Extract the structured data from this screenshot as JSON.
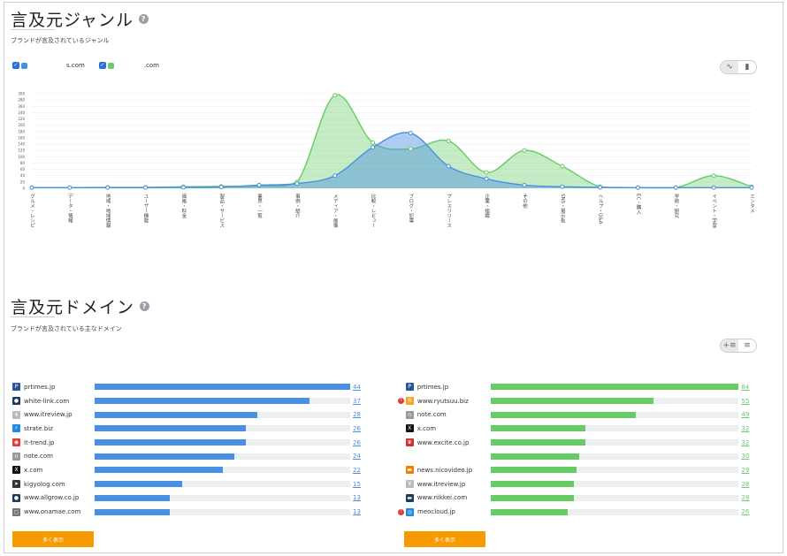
{
  "genre": {
    "title": "言及元ジャンル",
    "subtitle": "ブランドが言及されているジャンル",
    "legend": [
      {
        "label": "s.com",
        "color": "#4a90e2"
      },
      {
        "label": ".com",
        "color": "#66cc66"
      }
    ]
  },
  "domain_section": {
    "title": "言及元ドメイン",
    "subtitle": "ブランドが言及されている主なドメイン",
    "more_label": "多く表示"
  },
  "chart_data": {
    "type": "area",
    "categories": [
      "グルメ・レシピ",
      "データ・情報",
      "地域・地域情報",
      "ユーザー機能",
      "価格・料金",
      "製品・サービス",
      "業界・一覧",
      "事例・紹介",
      "メディア・画像",
      "比較・レビュー",
      "ブログ・記事",
      "プレスリリース",
      "企業・組織",
      "その他",
      "SNS・掲示板",
      "ヘルプ・Q&A",
      "EC・購入",
      "学術・研究",
      "イベント・学習",
      "エンタメ"
    ],
    "yticks": [
      0,
      20,
      40,
      60,
      80,
      100,
      120,
      140,
      160,
      180,
      200,
      220,
      240,
      260,
      280,
      300
    ],
    "ylim": [
      0,
      300
    ],
    "series": [
      {
        "name": "s.com",
        "color": "#4a90e2",
        "values": [
          2,
          2,
          2,
          2,
          3,
          4,
          10,
          15,
          40,
          130,
          175,
          70,
          30,
          10,
          5,
          3,
          2,
          2,
          2,
          2
        ]
      },
      {
        "name": ".com",
        "color": "#66cc66",
        "values": [
          2,
          2,
          3,
          3,
          5,
          6,
          8,
          20,
          295,
          145,
          125,
          150,
          50,
          120,
          70,
          5,
          2,
          2,
          40,
          5
        ]
      }
    ]
  },
  "left_domains": {
    "color": "#4a90e2",
    "max": 44,
    "rows": [
      {
        "name": "prtimes.jp",
        "value": 44,
        "icon": "prtimes-icon",
        "icolor": "#2a5599",
        "glyph": "P"
      },
      {
        "name": "white-link.com",
        "value": 37,
        "icon": "white-link-icon",
        "icolor": "#1b3a5c",
        "glyph": "●"
      },
      {
        "name": "www.itreview.jp",
        "value": 28,
        "icon": "itreview-icon",
        "icolor": "#bbbbbb",
        "glyph": "¥"
      },
      {
        "name": "strate.biz",
        "value": 26,
        "icon": "strate-icon",
        "icolor": "#1e88e5",
        "glyph": "⚡"
      },
      {
        "name": "it-trend.jp",
        "value": 26,
        "icon": "it-trend-icon",
        "icolor": "#e53935",
        "glyph": "◉"
      },
      {
        "name": "note.com",
        "value": 24,
        "icon": "note-icon",
        "icolor": "#999999",
        "glyph": "n"
      },
      {
        "name": "x.com",
        "value": 22,
        "icon": "x-icon",
        "icolor": "#111111",
        "glyph": "X"
      },
      {
        "name": "kigyolog.com",
        "value": 15,
        "icon": "kigyolog-icon",
        "icolor": "#333333",
        "glyph": "➤"
      },
      {
        "name": "www.allgrow.co.jp",
        "value": 13,
        "icon": "allgrow-icon",
        "icolor": "#1b3a5c",
        "glyph": "●"
      },
      {
        "name": "www.onamae.com",
        "value": 13,
        "icon": "onamae-icon",
        "icolor": "#777777",
        "glyph": "◻"
      }
    ]
  },
  "right_domains": {
    "color": "#66cc66",
    "max": 84,
    "rows": [
      {
        "name": "prtimes.jp",
        "value": 84,
        "icon": "prtimes-icon",
        "icolor": "#2a5599",
        "glyph": "P",
        "warn": false
      },
      {
        "name": "www.ryutsuu.biz",
        "value": 55,
        "icon": "ryutsuu-icon",
        "icolor": "#f5a623",
        "glyph": "R",
        "warn": true
      },
      {
        "name": "note.com",
        "value": 49,
        "icon": "note-icon",
        "icolor": "#999999",
        "glyph": "n",
        "warn": false
      },
      {
        "name": "x.com",
        "value": 32,
        "icon": "x-icon",
        "icolor": "#111111",
        "glyph": "X",
        "warn": false
      },
      {
        "name": "www.excite.co.jp",
        "value": 32,
        "icon": "excite-icon",
        "icolor": "#cc3333",
        "glyph": "♛",
        "warn": false
      },
      {
        "name": "",
        "value": 30,
        "icon": "blank-icon",
        "icolor": "#ffffff",
        "glyph": "",
        "warn": false
      },
      {
        "name": "news.nicovideo.jp",
        "value": 29,
        "icon": "nicovideo-icon",
        "icolor": "#f57c00",
        "glyph": "▬",
        "warn": false
      },
      {
        "name": "www.itreview.jp",
        "value": 28,
        "icon": "itreview-icon",
        "icolor": "#bbbbbb",
        "glyph": "¥",
        "warn": false
      },
      {
        "name": "www.nikkei.com",
        "value": 28,
        "icon": "nikkei-icon",
        "icolor": "#1b3a5c",
        "glyph": "▬",
        "warn": false
      },
      {
        "name": "meocloud.jp",
        "value": 26,
        "icon": "meocloud-icon",
        "icolor": "#1e88e5",
        "glyph": "◎",
        "warn": true
      }
    ]
  }
}
